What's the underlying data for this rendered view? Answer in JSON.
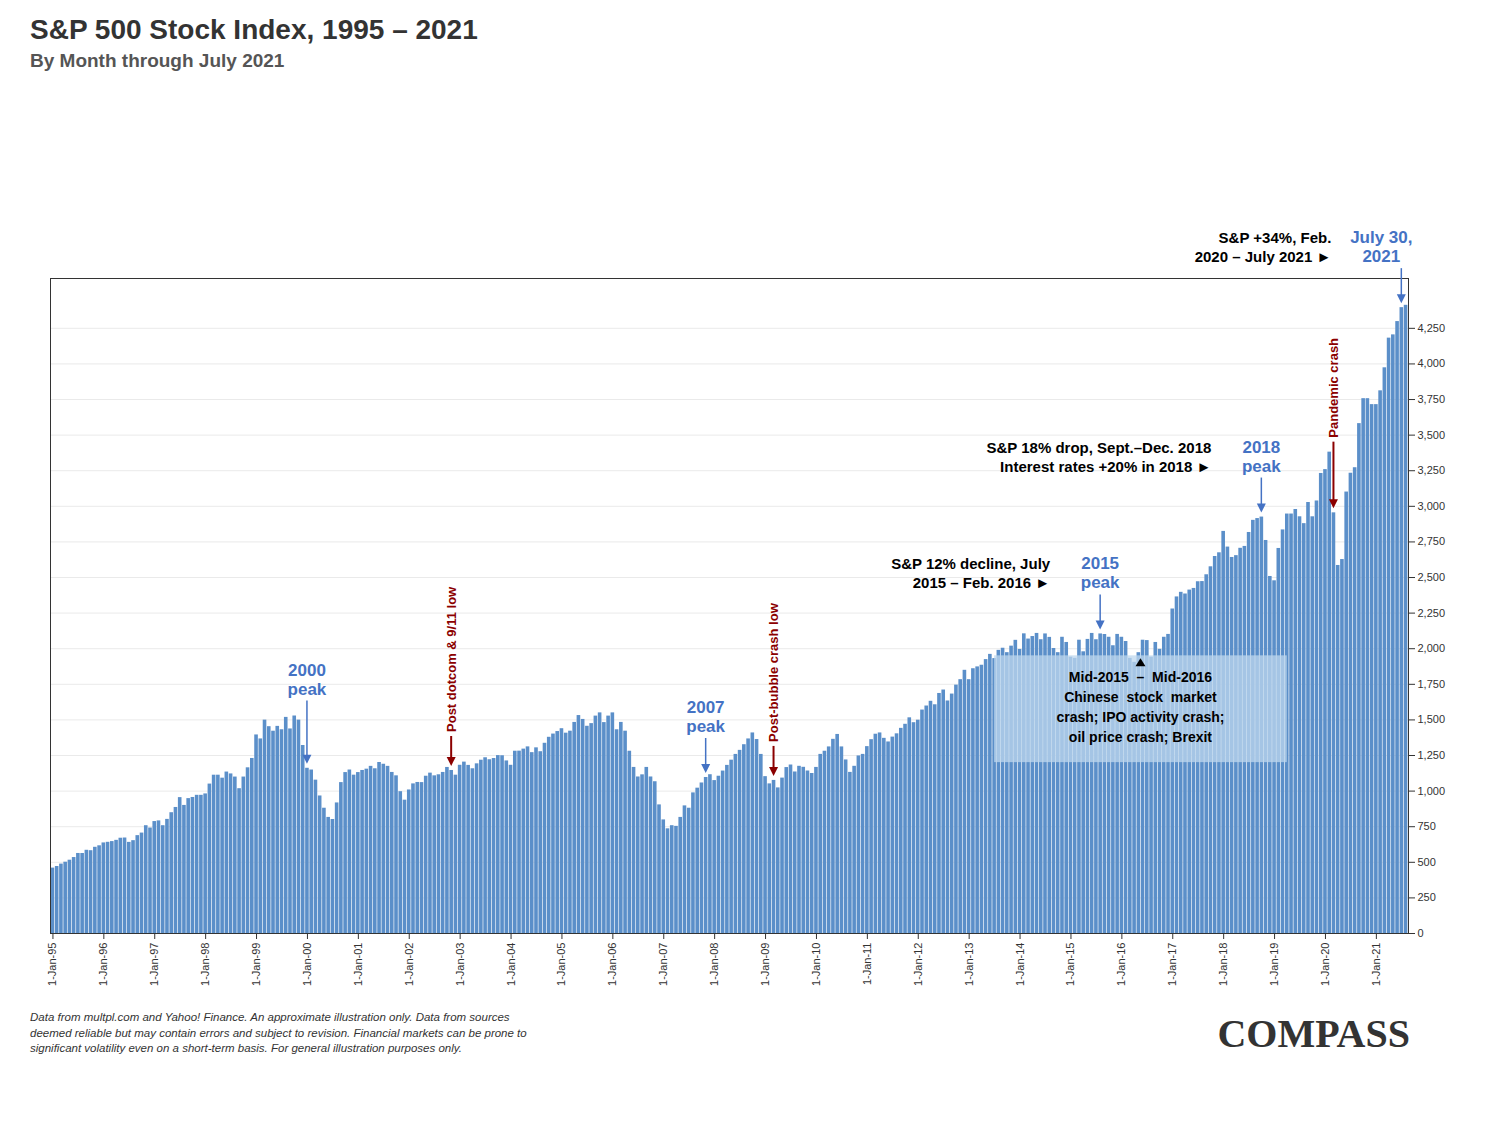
{
  "chart_data": {
    "type": "bar",
    "title": "S&P 500 Stock Index, 1995 – 2021",
    "subtitle": "By Month through July 2021",
    "categories": [
      "1-Jan-95",
      null,
      null,
      null,
      null,
      null,
      null,
      null,
      null,
      null,
      null,
      null,
      "1-Jan-96",
      null,
      null,
      null,
      null,
      null,
      null,
      null,
      null,
      null,
      null,
      null,
      "1-Jan-97",
      null,
      null,
      null,
      null,
      null,
      null,
      null,
      null,
      null,
      null,
      null,
      "1-Jan-98",
      null,
      null,
      null,
      null,
      null,
      null,
      null,
      null,
      null,
      null,
      null,
      "1-Jan-99",
      null,
      null,
      null,
      null,
      null,
      null,
      null,
      null,
      null,
      null,
      null,
      "1-Jan-00",
      null,
      null,
      null,
      null,
      null,
      null,
      null,
      null,
      null,
      null,
      null,
      "1-Jan-01",
      null,
      null,
      null,
      null,
      null,
      null,
      null,
      null,
      null,
      null,
      null,
      "1-Jan-02",
      null,
      null,
      null,
      null,
      null,
      null,
      null,
      null,
      null,
      null,
      null,
      "1-Jan-03",
      null,
      null,
      null,
      null,
      null,
      null,
      null,
      null,
      null,
      null,
      null,
      "1-Jan-04",
      null,
      null,
      null,
      null,
      null,
      null,
      null,
      null,
      null,
      null,
      null,
      "1-Jan-05",
      null,
      null,
      null,
      null,
      null,
      null,
      null,
      null,
      null,
      null,
      null,
      "1-Jan-06",
      null,
      null,
      null,
      null,
      null,
      null,
      null,
      null,
      null,
      null,
      null,
      "1-Jan-07",
      null,
      null,
      null,
      null,
      null,
      null,
      null,
      null,
      null,
      null,
      null,
      "1-Jan-08",
      null,
      null,
      null,
      null,
      null,
      null,
      null,
      null,
      null,
      null,
      null,
      "1-Jan-09",
      null,
      null,
      null,
      null,
      null,
      null,
      null,
      null,
      null,
      null,
      null,
      "1-Jan-10",
      null,
      null,
      null,
      null,
      null,
      null,
      null,
      null,
      null,
      null,
      null,
      "1-Jan-11",
      null,
      null,
      null,
      null,
      null,
      null,
      null,
      null,
      null,
      null,
      null,
      "1-Jan-12",
      null,
      null,
      null,
      null,
      null,
      null,
      null,
      null,
      null,
      null,
      null,
      "1-Jan-13",
      null,
      null,
      null,
      null,
      null,
      null,
      null,
      null,
      null,
      null,
      null,
      "1-Jan-14",
      null,
      null,
      null,
      null,
      null,
      null,
      null,
      null,
      null,
      null,
      null,
      "1-Jan-15",
      null,
      null,
      null,
      null,
      null,
      null,
      null,
      null,
      null,
      null,
      null,
      "1-Jan-16",
      null,
      null,
      null,
      null,
      null,
      null,
      null,
      null,
      null,
      null,
      null,
      "1-Jan-17",
      null,
      null,
      null,
      null,
      null,
      null,
      null,
      null,
      null,
      null,
      null,
      "1-Jan-18",
      null,
      null,
      null,
      null,
      null,
      null,
      null,
      null,
      null,
      null,
      null,
      "1-Jan-19",
      null,
      null,
      null,
      null,
      null,
      null,
      null,
      null,
      null,
      null,
      null,
      "1-Jan-20",
      null,
      null,
      null,
      null,
      null,
      null,
      null,
      null,
      null,
      null,
      null,
      "1-Jan-21",
      null,
      null,
      null,
      null,
      null,
      null,
      null
    ],
    "values": [
      459.27,
      470.42,
      487.39,
      500.71,
      514.71,
      533.4,
      562.06,
      561.88,
      584.41,
      581.5,
      605.37,
      615.93,
      636.02,
      640.43,
      645.5,
      654.17,
      669.12,
      670.63,
      639.95,
      651.99,
      687.31,
      705.27,
      757.02,
      740.74,
      786.16,
      790.82,
      757.12,
      801.34,
      848.28,
      885.14,
      954.29,
      899.47,
      947.28,
      955.4,
      970.43,
      970.43,
      980.28,
      1049.34,
      1111.75,
      1111.75,
      1090.82,
      1133.84,
      1120.67,
      1098.67,
      1017.01,
      1098.67,
      1163.63,
      1229.23,
      1394.46,
      1366.42,
      1498.58,
      1452.43,
      1420.6,
      1454.6,
      1430.83,
      1517.68,
      1436.51,
      1527.46,
      1498.58,
      1320.28,
      1160.33,
      1148.08,
      1076.92,
      965.8,
      879.82,
      815.28,
      800.58,
      916.92,
      1059.78,
      1130.2,
      1148.08,
      1111.92,
      1130.2,
      1144.94,
      1154.09,
      1173.82,
      1156.85,
      1200.97,
      1188.58,
      1173.82,
      1131.13,
      1107.3,
      995.97,
      936.31,
      1008.01,
      1050.71,
      1060.72,
      1059.78,
      1104.49,
      1126.21,
      1107.3,
      1114.58,
      1131.13,
      1166.16,
      1144.94,
      1111.92,
      1181.41,
      1203.6,
      1180.59,
      1156.85,
      1191.5,
      1216.96,
      1234.18,
      1220.33,
      1228.81,
      1249.48,
      1248.29,
      1211.92,
      1181.27,
      1280.08,
      1280.66,
      1294.87,
      1310.61,
      1270.09,
      1303.82,
      1276.66,
      1335.85,
      1377.94,
      1400.63,
      1418.3,
      1438.24,
      1406.82,
      1420.86,
      1482.37,
      1530.62,
      1503.35,
      1455.27,
      1473.99,
      1526.75,
      1549.38,
      1481.14,
      1526.75,
      1549.38,
      1430.73,
      1482.37,
      1420.86,
      1280.0,
      1166.36,
      1099.23,
      1114.28,
      1166.36,
      1099.23,
      1065.79,
      903.25,
      797.7,
      735.09,
      757.12,
      752.44,
      815.28,
      896.24,
      879.82,
      987.48,
      1020.62,
      1057.08,
      1095.63,
      1115.1,
      1073.87,
      1104.49,
      1140.84,
      1180.59,
      1217.28,
      1257.64,
      1286.12,
      1325.83,
      1366.42,
      1408.47,
      1362.16,
      1257.64,
      1101.6,
      1050.71,
      1075.0,
      1022.58,
      1091.38,
      1165.36,
      1183.26,
      1134.28,
      1174.17,
      1167.14,
      1141.2,
      1123.69,
      1166.36,
      1257.88,
      1280.1,
      1310.33,
      1363.61,
      1397.91,
      1310.33,
      1218.89,
      1131.42,
      1174.17,
      1246.96,
      1257.88,
      1312.41,
      1361.22,
      1399.48,
      1408.47,
      1370.58,
      1345.2,
      1379.32,
      1402.22,
      1440.67,
      1469.25,
      1514.68,
      1480.4,
      1498.11,
      1569.19,
      1597.57,
      1630.74,
      1606.28,
      1685.73,
      1709.91,
      1632.97,
      1681.55,
      1744.5,
      1782.59,
      1848.36,
      1782.59,
      1859.45,
      1872.34,
      1883.95,
      1923.57,
      1960.23,
      1930.67,
      1988.4,
      2003.37,
      1972.29,
      2018.05,
      2058.9,
      1994.99,
      2104.5,
      2067.89,
      2085.51,
      2107.39,
      2063.11,
      2103.84,
      2079.61,
      2001.57,
      1972.18,
      2080.41,
      2043.94,
      1940.24,
      1932.23,
      2059.74,
      1978.35,
      2065.3,
      2107.39,
      2063.11,
      2103.84,
      2099.84,
      2080.41,
      2020.9,
      2100.44,
      2080.41,
      2050.55,
      1932.23,
      1904.42,
      1972.18,
      2059.74,
      2057.14,
      1940.51,
      2043.94,
      1995.83,
      2080.41,
      2100.44,
      2278.87,
      2363.64,
      2395.96,
      2384.2,
      2411.8,
      2423.41,
      2470.3,
      2471.65,
      2519.36,
      2575.26,
      2647.58,
      2673.61,
      2823.81,
      2713.83,
      2640.87,
      2653.63,
      2705.27,
      2718.37,
      2816.29,
      2901.52,
      2914.04,
      2924.58,
      2760.17,
      2507.39,
      2476.96,
      2704.1,
      2834.4,
      2945.83,
      2945.83,
      2977.74,
      2926.46,
      2878.38,
      3026.86,
      2926.46,
      3037.56,
      3230.78,
      3257.85,
      3380.45,
      2954.22,
      2584.59,
      2626.22,
      3100.29,
      3232.39,
      3271.12,
      3580.84,
      3756.07,
      3756.07,
      3714.24,
      3714.24,
      3811.15,
      3972.89,
      4181.17,
      4204.11,
      4297.5,
      4395.26,
      4411.79
    ],
    "color": "#5b8fc9",
    "ylim": [
      0,
      4600
    ],
    "yticks": [
      0,
      250,
      500,
      750,
      {
        "value": 1000,
        "label": "1,000"
      },
      {
        "value": 1250,
        "label": "1,250"
      },
      {
        "value": 1500,
        "label": "1,500"
      },
      {
        "value": 1750,
        "label": "1,750"
      },
      {
        "value": 2000,
        "label": "2,000"
      },
      {
        "value": 2250,
        "label": "2,250"
      },
      {
        "value": 2500,
        "label": "2,500"
      },
      {
        "value": 2750,
        "label": "2,750"
      },
      {
        "value": 3000,
        "label": "3,000"
      },
      {
        "value": 3250,
        "label": "3,250"
      },
      {
        "value": 3500,
        "label": "3,500"
      },
      {
        "value": 3750,
        "label": "3,750"
      },
      {
        "value": 4000,
        "label": "4,000"
      },
      {
        "value": 4250,
        "label": "4,250"
      }
    ],
    "grid": true,
    "annotations": [
      {
        "text": "2000\npeak",
        "index": 60,
        "color": "#4472c4",
        "kind": "peak"
      },
      {
        "text": "Post dotcom & 9/11 low",
        "index": 94,
        "color": "#8b0000",
        "kind": "low"
      },
      {
        "text": "2007\npeak",
        "index": 154,
        "color": "#4472c4",
        "kind": "peak"
      },
      {
        "text": "Post-bubble crash low",
        "index": 170,
        "color": "#8b0000",
        "kind": "low"
      },
      {
        "text": "2015\npeak",
        "index": 247,
        "color": "#4472c4",
        "kind": "peak"
      },
      {
        "text": "2018\npeak",
        "index": 285,
        "color": "#4472c4",
        "kind": "peak"
      },
      {
        "text": "Pandemic crash",
        "index": 302,
        "color": "#8b0000",
        "kind": "low"
      },
      {
        "text": "July 30,\n2021",
        "index": 318,
        "color": "#4472c4",
        "kind": "latest"
      }
    ],
    "notes": [
      "S&P +34%, Feb.\n2020 – July 2021 ►",
      "S&P 18% drop, Sept.–Dec. 2018\nInterest rates +20% in 2018 ►",
      "S&P 12% decline, July\n2015 – Feb. 2016 ►"
    ],
    "box": {
      "x1": 222,
      "x2": 291,
      "y1": 1200,
      "y2": 1950,
      "color": "#bdd7ee",
      "text": "Mid-2015  –  Mid-2016\nChinese  stock  market\ncrash; IPO activity crash;\noil price crash; Brexit"
    },
    "footer": "Data from multpl.com and Yahoo! Finance. An approximate illustration only. Data from sources\ndeemed reliable but may contain errors and subject to revision. Financial markets can be prone to\nsignificant volatility even on a short-term basis. For general illustration purposes only.",
    "logo": "COMPASS"
  }
}
